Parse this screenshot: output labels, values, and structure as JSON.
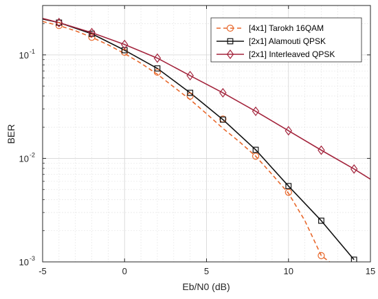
{
  "chart_data": {
    "type": "line",
    "title": "",
    "xlabel": "Eb/N0 (dB)",
    "ylabel": "BER",
    "xlim": [
      -5,
      15
    ],
    "ylim": [
      0.001,
      0.3
    ],
    "yscale": "log",
    "grid": true,
    "minor_grid": true,
    "legend_position": "top-right",
    "x_ticks": [
      -5,
      0,
      5,
      10,
      15
    ],
    "x_tick_labels": [
      "-5",
      "0",
      "5",
      "10",
      "15"
    ],
    "y_ticks": [
      0.001,
      0.01,
      0.1
    ],
    "y_tick_labels": [
      {
        "base": "10",
        "exp": "-3"
      },
      {
        "base": "10",
        "exp": "-2"
      },
      {
        "base": "10",
        "exp": "-1"
      }
    ],
    "series": [
      {
        "name": "[4x1] Tarokh 16QAM",
        "color": "#e8672a",
        "line_style": "dashed",
        "marker": "circle",
        "curve_x": [
          -5,
          -4,
          -3,
          -2,
          -1,
          0,
          1,
          2,
          3,
          4,
          5,
          6,
          7,
          8,
          9,
          10,
          11,
          12,
          12.5
        ],
        "curve_y": [
          0.21,
          0.192,
          0.171,
          0.148,
          0.125,
          0.103,
          0.083,
          0.065,
          0.049,
          0.037,
          0.027,
          0.0195,
          0.0145,
          0.0105,
          0.007,
          0.0046,
          0.0025,
          0.00115,
          0.001
        ],
        "marker_x": [
          -4,
          -2,
          0,
          2,
          4,
          6,
          8,
          10,
          12
        ],
        "marker_y": [
          0.192,
          0.148,
          0.106,
          0.068,
          0.04,
          0.024,
          0.0105,
          0.0047,
          0.00115
        ]
      },
      {
        "name": "[2x1] Alamouti QPSK",
        "color": "#111111",
        "line_style": "solid",
        "marker": "square",
        "x": [
          -5,
          -4,
          -2,
          0,
          2,
          4,
          6,
          8,
          10,
          12,
          14
        ],
        "y": [
          0.222,
          0.205,
          0.16,
          0.111,
          0.074,
          0.043,
          0.0237,
          0.0121,
          0.0054,
          0.0025,
          0.00105
        ]
      },
      {
        "name": "[2x1] Interleaved QPSK",
        "color": "#a3243c",
        "line_style": "solid",
        "marker": "diamond",
        "x": [
          -5,
          -4,
          -2,
          0,
          2,
          4,
          6,
          8,
          10,
          12,
          14,
          15
        ],
        "y": [
          0.225,
          0.205,
          0.164,
          0.126,
          0.093,
          0.063,
          0.043,
          0.0285,
          0.0185,
          0.012,
          0.0079,
          0.0063
        ]
      }
    ]
  }
}
